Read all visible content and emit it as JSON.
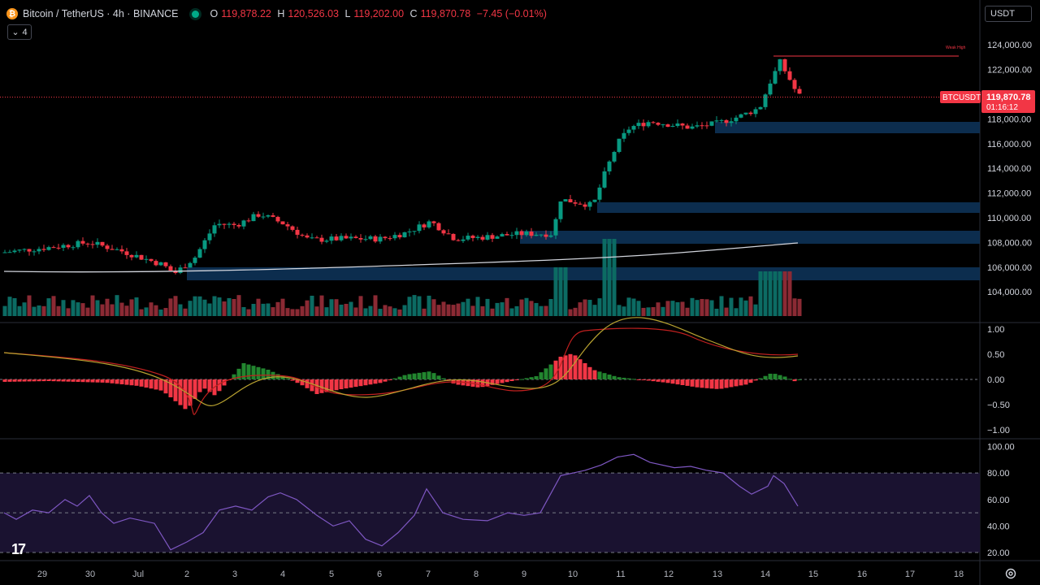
{
  "header": {
    "symbol_title": "Bitcoin / TetherUS · 4h · BINANCE",
    "ohlc": {
      "o_label": "O",
      "o": "119,878.22",
      "h_label": "H",
      "h": "120,526.03",
      "l_label": "L",
      "l": "119,202.00",
      "c_label": "C",
      "c": "119,870.78",
      "change": "−7.45 (−0.01%)"
    },
    "indicator_count": "4"
  },
  "currency_select": "USDT",
  "price_axis": {
    "ticks": [
      "124,000.00",
      "122,000.00",
      "118,000.00",
      "116,000.00",
      "114,000.00",
      "112,000.00",
      "110,000.00",
      "108,000.00",
      "106,000.00",
      "104,000.00"
    ],
    "tick_values": [
      124000,
      122000,
      118000,
      116000,
      114000,
      112000,
      110000,
      108000,
      106000,
      104000
    ]
  },
  "price_badge": {
    "symbol": "BTCUSDT",
    "price": "119,870.78",
    "countdown": "01:16:12"
  },
  "annotation": {
    "weak_high": "Weak High"
  },
  "macd_axis": {
    "ticks": [
      "1.00",
      "0.50",
      "0.00",
      "−0.50",
      "−1.00"
    ]
  },
  "rsi_axis": {
    "ticks": [
      "100.00",
      "80.00",
      "60.00",
      "40.00",
      "20.00"
    ]
  },
  "time_axis": {
    "labels": [
      "29",
      "30",
      "Jul",
      "2",
      "3",
      "4",
      "5",
      "6",
      "7",
      "8",
      "9",
      "10",
      "11",
      "12",
      "13",
      "14",
      "15",
      "16",
      "17",
      "18"
    ]
  },
  "colors": {
    "up": "#089981",
    "down": "#f23645",
    "zone": "#0d3256",
    "rsi": "#7e57c2",
    "signal": "#b8a230",
    "macd_line": "#c0201f",
    "ma": "#d1d4dc"
  },
  "icons": {
    "logo": "tradingview-logo-icon",
    "settings": "gear-icon",
    "chevron": "chevron-down-icon"
  }
}
